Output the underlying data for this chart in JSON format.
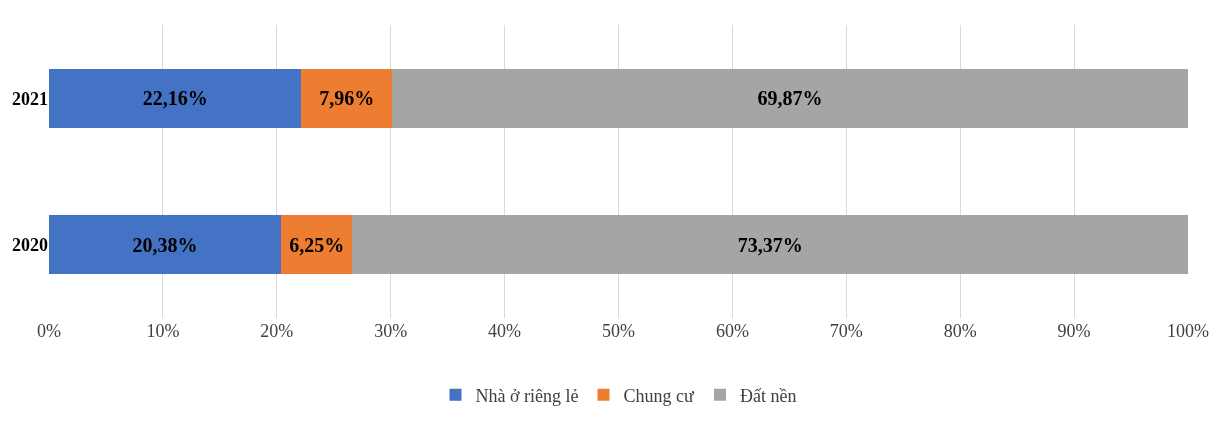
{
  "chart_data": {
    "type": "bar",
    "orientation": "horizontal",
    "stacked": true,
    "categories": [
      "2021",
      "2020"
    ],
    "series": [
      {
        "name": "Nhà ở riêng lẻ",
        "color": "#4472c4",
        "values": [
          22.16,
          20.38
        ],
        "value_labels": [
          "22,16%",
          "20,38%"
        ]
      },
      {
        "name": "Chung cư",
        "color": "#ed7d31",
        "values": [
          7.96,
          6.25
        ],
        "value_labels": [
          "7,96%",
          "6,25%"
        ]
      },
      {
        "name": "Đất nền",
        "color": "#a5a5a5",
        "values": [
          69.87,
          73.37
        ],
        "value_labels": [
          "69,87%",
          "73,37%"
        ]
      }
    ],
    "xlim": [
      0,
      100
    ],
    "xticks": [
      {
        "value": 0,
        "label": "0%"
      },
      {
        "value": 10,
        "label": "10%"
      },
      {
        "value": 20,
        "label": "20%"
      },
      {
        "value": 30,
        "label": "30%"
      },
      {
        "value": 40,
        "label": "40%"
      },
      {
        "value": 50,
        "label": "50%"
      },
      {
        "value": 60,
        "label": "60%"
      },
      {
        "value": 70,
        "label": "70%"
      },
      {
        "value": 80,
        "label": "80%"
      },
      {
        "value": 90,
        "label": "90%"
      },
      {
        "value": 100,
        "label": "100%"
      }
    ],
    "grid": "x",
    "legend": "bottom"
  }
}
